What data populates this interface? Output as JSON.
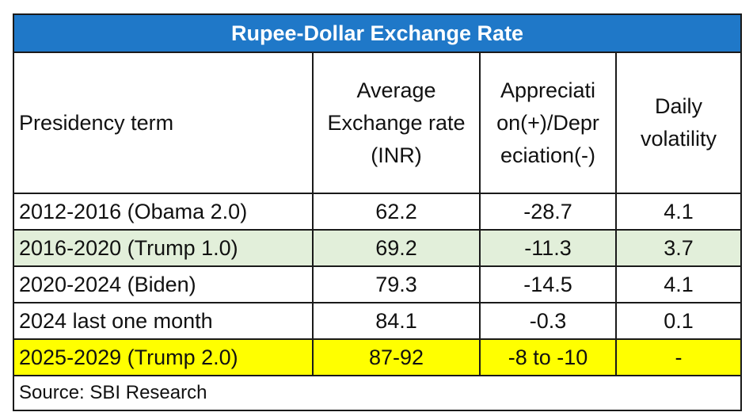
{
  "title": "Rupee-Dollar Exchange Rate",
  "headers": [
    "Presidency term",
    "Average Exchange rate (INR)",
    "Appreciation(+)/Depreciation(-)",
    "Daily volatility"
  ],
  "header_lines": {
    "avg": [
      "Average",
      "Exchange rate",
      "(INR)"
    ],
    "appr": [
      "Appreciati",
      "on(+)/Depr",
      "eciation(-)"
    ],
    "vol": [
      "Daily",
      "volatility"
    ]
  },
  "rows": [
    {
      "term": "2012-2016 (Obama 2.0)",
      "avg": "62.2",
      "change": "-28.7",
      "vol": "4.1"
    },
    {
      "term": "2016-2020 (Trump 1.0)",
      "avg": "69.2",
      "change": "-11.3",
      "vol": "3.7"
    },
    {
      "term": "2020-2024 (Biden)",
      "avg": "79.3",
      "change": "-14.5",
      "vol": "4.1"
    },
    {
      "term": "2024 last one month",
      "avg": "84.1",
      "change": "-0.3",
      "vol": "0.1"
    },
    {
      "term": "2025-2029 (Trump 2.0)",
      "avg": "87-92",
      "change": "-8 to -10",
      "vol": "-"
    }
  ],
  "source": "Source: SBI Research",
  "colors": {
    "title_bg": "#1f78c8",
    "row_green": "#e2efda",
    "row_yellow": "#ffff00"
  }
}
